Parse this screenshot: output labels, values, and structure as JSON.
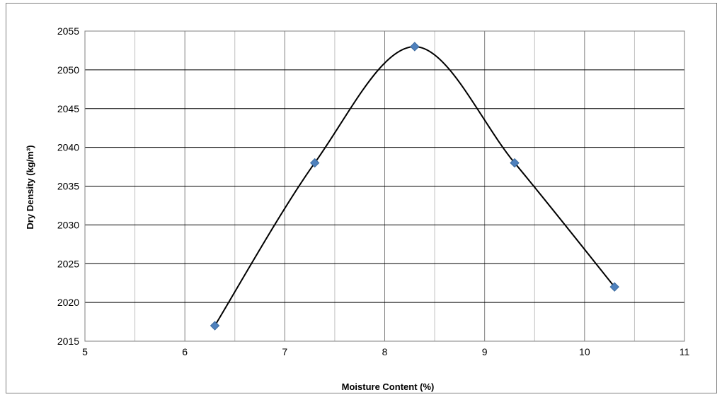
{
  "chart_data": {
    "type": "scatter",
    "title": "",
    "xlabel": "Moisture Content (%)",
    "ylabel": "Dry Density (kg/m³)",
    "xlim": [
      5,
      11
    ],
    "ylim": [
      2015,
      2055
    ],
    "x_ticks": [
      "5",
      "6",
      "7",
      "8",
      "9",
      "10",
      "11"
    ],
    "y_ticks": [
      "2015",
      "2020",
      "2025",
      "2030",
      "2035",
      "2040",
      "2045",
      "2050",
      "2055"
    ],
    "grid": true,
    "legend": "none",
    "trendline": "smooth curve through points",
    "series": [
      {
        "x": [
          6.3,
          7.3,
          8.3,
          9.3,
          10.3
        ],
        "y": [
          2017,
          2038,
          2053,
          2038,
          2022
        ],
        "marker": "diamond",
        "marker_color": "#4f81bd",
        "line_color": "#000000"
      }
    ]
  }
}
